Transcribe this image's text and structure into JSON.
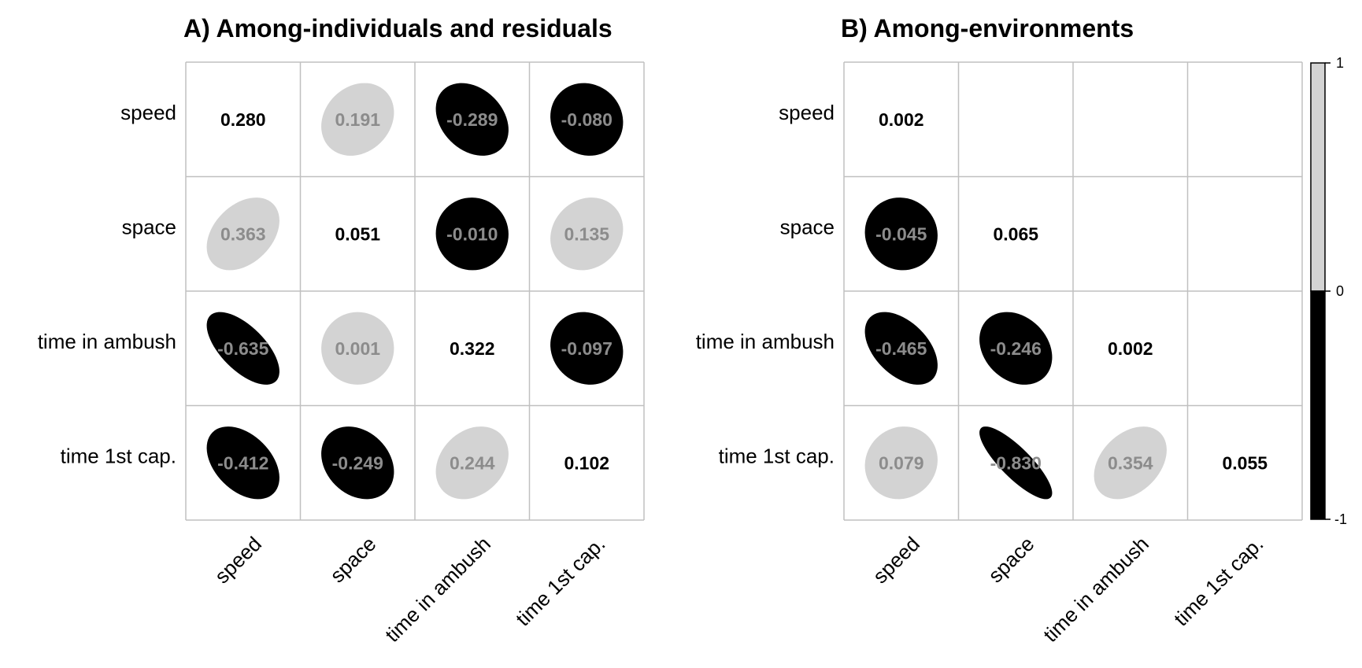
{
  "chart_data": [
    {
      "type": "heatmap",
      "title": "A) Among-individuals and residuals",
      "variables": [
        "speed",
        "space",
        "time in ambush",
        "time 1st cap."
      ],
      "matrix": [
        [
          "0.280",
          "0.191",
          "-0.289",
          "-0.080"
        ],
        [
          "0.363",
          "0.051",
          "-0.010",
          "0.135"
        ],
        [
          "-0.635",
          "0.001",
          "0.322",
          "-0.097"
        ],
        [
          "-0.412",
          "-0.249",
          "0.244",
          "0.102"
        ]
      ]
    },
    {
      "type": "heatmap",
      "title": "B) Among-environments",
      "variables": [
        "speed",
        "space",
        "time in ambush",
        "time 1st cap."
      ],
      "matrix": [
        [
          "0.002",
          null,
          null,
          null
        ],
        [
          "-0.045",
          "0.065",
          null,
          null
        ],
        [
          "-0.465",
          "-0.246",
          "0.002",
          null
        ],
        [
          "0.079",
          "-0.830",
          "0.354",
          "0.055"
        ]
      ]
    }
  ],
  "legend": {
    "ticks": [
      "1",
      "0",
      "-1"
    ],
    "positive_color": "#d3d3d3",
    "negative_color": "#000000"
  },
  "colors": {
    "grid": "#c0c0c0",
    "value_on_shape": "#8c8c8c",
    "diagonal_value": "#000000"
  }
}
